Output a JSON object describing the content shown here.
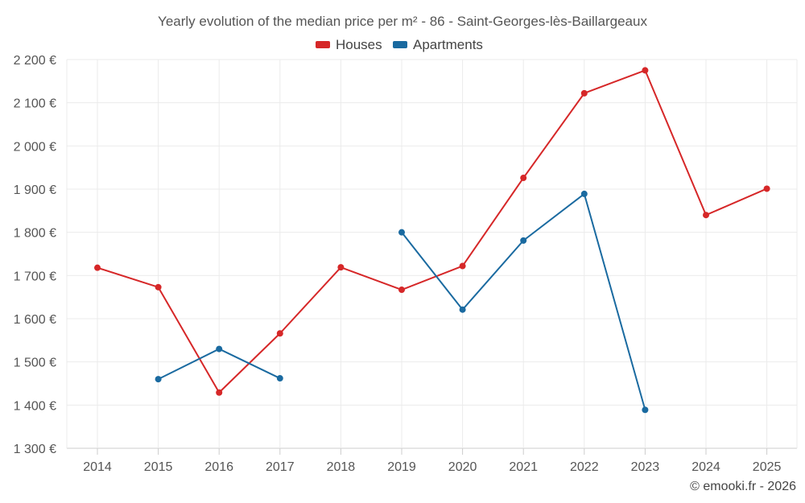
{
  "chart_data": {
    "type": "line",
    "title": "Yearly evolution of the median price per m² - 86 - Saint-Georges-lès-Baillargeaux",
    "xlabel": "",
    "ylabel": "",
    "categories": [
      "2014",
      "2015",
      "2016",
      "2017",
      "2018",
      "2019",
      "2020",
      "2021",
      "2022",
      "2023",
      "2024",
      "2025"
    ],
    "ylim": [
      1300,
      2200
    ],
    "yticks": [
      1300,
      1400,
      1500,
      1600,
      1700,
      1800,
      1900,
      2000,
      2100,
      2200
    ],
    "ytick_labels": [
      "1 300 €",
      "1 400 €",
      "1 500 €",
      "1 600 €",
      "1 700 €",
      "1 800 €",
      "1 900 €",
      "2 000 €",
      "2 100 €",
      "2 200 €"
    ],
    "legend_position": "top-center",
    "series": [
      {
        "name": "Houses",
        "color": "#d62728",
        "values": [
          1718,
          1673,
          1429,
          1566,
          1719,
          1667,
          1722,
          1926,
          2122,
          2175,
          1840,
          1901
        ]
      },
      {
        "name": "Apartments",
        "color": "#1a6aa0",
        "values": [
          null,
          1460,
          1530,
          1462,
          null,
          1800,
          1621,
          1781,
          1889,
          1389,
          null,
          null
        ]
      }
    ]
  },
  "credit": "© emooki.fr - 2026"
}
